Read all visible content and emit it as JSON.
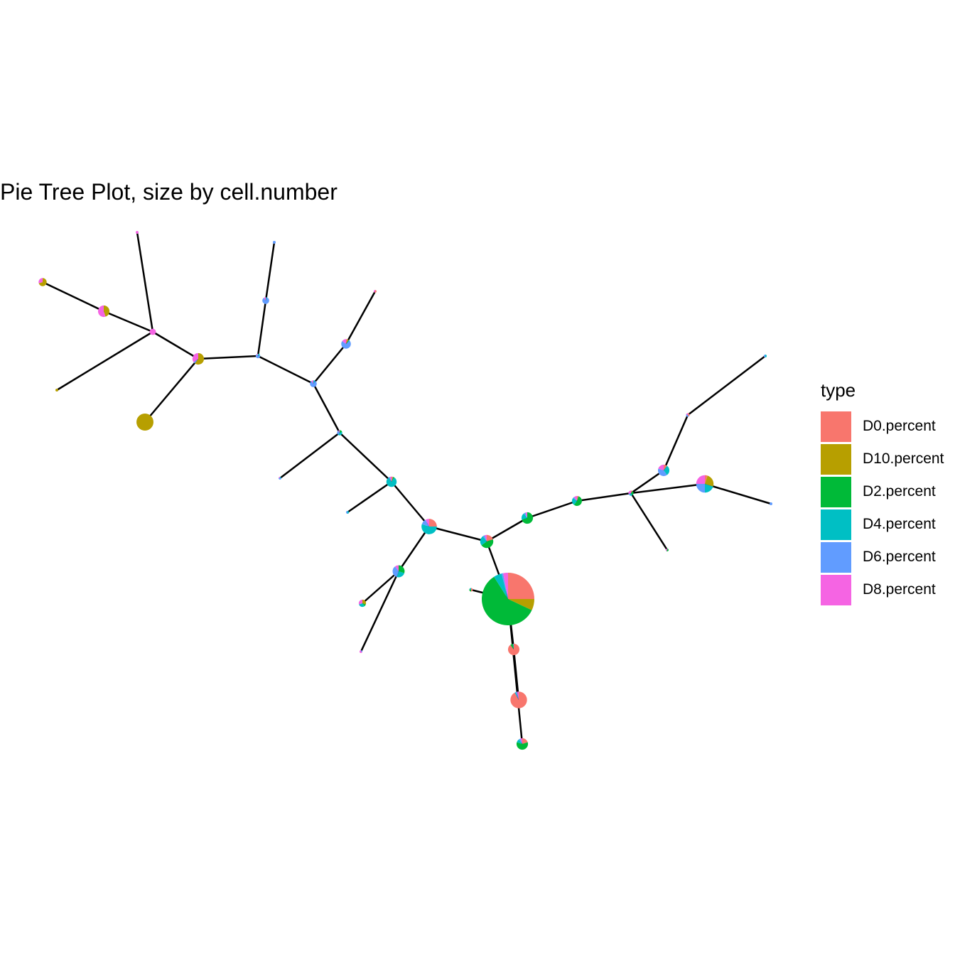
{
  "chart_data": {
    "type": "pie-tree",
    "title": "Pie Tree Plot, size by cell.number",
    "legend": {
      "title": "type",
      "position": "right",
      "entries": [
        {
          "name": "D0.percent",
          "color": "#F8766D"
        },
        {
          "name": "D10.percent",
          "color": "#B79F00"
        },
        {
          "name": "D2.percent",
          "color": "#00BA38"
        },
        {
          "name": "D4.percent",
          "color": "#00BFC4"
        },
        {
          "name": "D6.percent",
          "color": "#619CFF"
        },
        {
          "name": "D8.percent",
          "color": "#F564E3"
        }
      ]
    },
    "nodes": [
      {
        "id": "n1",
        "size": 4200,
        "percent": {
          "D0": 25,
          "D10": 7,
          "D2": 59,
          "D4": 5,
          "D6": 1,
          "D8": 3
        }
      },
      {
        "id": "n2",
        "size": 260,
        "percent": {
          "D0": 20,
          "D10": 0,
          "D2": 45,
          "D4": 25,
          "D6": 5,
          "D8": 5
        }
      },
      {
        "id": "n3",
        "size": 200,
        "percent": {
          "D0": 90,
          "D10": 0,
          "D2": 8,
          "D4": 0,
          "D6": 2,
          "D8": 0
        }
      },
      {
        "id": "n4",
        "size": 420,
        "percent": {
          "D0": 92,
          "D10": 0,
          "D2": 0,
          "D4": 2,
          "D6": 3,
          "D8": 3
        }
      },
      {
        "id": "n5",
        "size": 20,
        "percent": {
          "D0": 50,
          "D10": 0,
          "D2": 30,
          "D4": 20,
          "D6": 0,
          "D8": 0
        }
      },
      {
        "id": "n6",
        "size": 200,
        "percent": {
          "D0": 20,
          "D10": 0,
          "D2": 60,
          "D4": 10,
          "D6": 5,
          "D8": 5
        }
      },
      {
        "id": "n7",
        "size": 360,
        "percent": {
          "D0": 25,
          "D10": 0,
          "D2": 0,
          "D4": 55,
          "D6": 12,
          "D8": 8
        }
      },
      {
        "id": "n8",
        "size": 220,
        "percent": {
          "D0": 0,
          "D10": 0,
          "D2": 30,
          "D4": 25,
          "D6": 35,
          "D8": 10
        }
      },
      {
        "id": "n9",
        "size": 80,
        "percent": {
          "D0": 0,
          "D10": 30,
          "D2": 10,
          "D4": 30,
          "D6": 0,
          "D8": 30
        }
      },
      {
        "id": "n10",
        "size": 10,
        "percent": {
          "D0": 0,
          "D10": 0,
          "D2": 0,
          "D4": 0,
          "D6": 30,
          "D8": 70
        }
      },
      {
        "id": "n11",
        "size": 10,
        "percent": {
          "D0": 0,
          "D10": 0,
          "D2": 0,
          "D4": 50,
          "D6": 50,
          "D8": 0
        }
      },
      {
        "id": "n12",
        "size": 160,
        "percent": {
          "D0": 5,
          "D10": 0,
          "D2": 5,
          "D4": 80,
          "D6": 5,
          "D8": 5
        }
      },
      {
        "id": "n13",
        "size": 40,
        "percent": {
          "D0": 0,
          "D10": 0,
          "D2": 20,
          "D4": 40,
          "D6": 30,
          "D8": 10
        }
      },
      {
        "id": "n14",
        "size": 70,
        "percent": {
          "D0": 0,
          "D10": 0,
          "D2": 0,
          "D4": 10,
          "D6": 80,
          "D8": 10
        }
      },
      {
        "id": "n15",
        "size": 140,
        "percent": {
          "D0": 5,
          "D10": 5,
          "D2": 0,
          "D4": 5,
          "D6": 70,
          "D8": 15
        }
      },
      {
        "id": "n16",
        "size": 8,
        "percent": {
          "D0": 60,
          "D10": 0,
          "D2": 0,
          "D4": 0,
          "D6": 0,
          "D8": 40
        }
      },
      {
        "id": "n17",
        "size": 30,
        "percent": {
          "D0": 0,
          "D10": 0,
          "D2": 0,
          "D4": 20,
          "D6": 70,
          "D8": 10
        }
      },
      {
        "id": "n18",
        "size": 70,
        "percent": {
          "D0": 0,
          "D10": 0,
          "D2": 0,
          "D4": 5,
          "D6": 85,
          "D8": 10
        }
      },
      {
        "id": "n19",
        "size": 8,
        "percent": {
          "D0": 0,
          "D10": 0,
          "D2": 0,
          "D4": 0,
          "D6": 100,
          "D8": 0
        }
      },
      {
        "id": "n20",
        "size": 200,
        "percent": {
          "D0": 0,
          "D10": 60,
          "D2": 0,
          "D4": 0,
          "D6": 5,
          "D8": 35
        }
      },
      {
        "id": "n21",
        "size": 60,
        "percent": {
          "D0": 0,
          "D10": 0,
          "D2": 0,
          "D4": 0,
          "D6": 0,
          "D8": 100
        }
      },
      {
        "id": "n22",
        "size": 200,
        "percent": {
          "D0": 0,
          "D10": 45,
          "D2": 0,
          "D4": 0,
          "D6": 0,
          "D8": 55
        }
      },
      {
        "id": "n23",
        "size": 100,
        "percent": {
          "D0": 0,
          "D10": 70,
          "D2": 0,
          "D4": 0,
          "D6": 0,
          "D8": 30
        }
      },
      {
        "id": "n24",
        "size": 5,
        "percent": {
          "D0": 0,
          "D10": 0,
          "D2": 0,
          "D4": 0,
          "D6": 0,
          "D8": 100
        }
      },
      {
        "id": "n25",
        "size": 4,
        "percent": {
          "D0": 0,
          "D10": 100,
          "D2": 0,
          "D4": 0,
          "D6": 0,
          "D8": 0
        }
      },
      {
        "id": "n26",
        "size": 440,
        "percent": {
          "D0": 0,
          "D10": 100,
          "D2": 0,
          "D4": 0,
          "D6": 0,
          "D8": 0
        }
      },
      {
        "id": "n27",
        "size": 8,
        "percent": {
          "D0": 0,
          "D10": 0,
          "D2": 0,
          "D4": 20,
          "D6": 60,
          "D8": 20
        }
      },
      {
        "id": "n28",
        "size": 70,
        "percent": {
          "D0": 0,
          "D10": 20,
          "D2": 5,
          "D4": 20,
          "D6": 20,
          "D8": 35
        }
      },
      {
        "id": "n29",
        "size": 10,
        "percent": {
          "D0": 0,
          "D10": 0,
          "D2": 0,
          "D4": 0,
          "D6": 20,
          "D8": 80
        }
      },
      {
        "id": "n30",
        "size": 10,
        "percent": {
          "D0": 0,
          "D10": 0,
          "D2": 50,
          "D4": 0,
          "D6": 0,
          "D8": 50
        }
      },
      {
        "id": "n31",
        "size": 140,
        "percent": {
          "D0": 15,
          "D10": 0,
          "D2": 5,
          "D4": 40,
          "D6": 0,
          "D8": 40
        }
      },
      {
        "id": "n32",
        "size": 200,
        "percent": {
          "D0": 0,
          "D10": 0,
          "D2": 70,
          "D4": 20,
          "D6": 5,
          "D8": 5
        }
      },
      {
        "id": "n33",
        "size": 150,
        "percent": {
          "D0": 5,
          "D10": 0,
          "D2": 55,
          "D4": 25,
          "D6": 5,
          "D8": 10
        }
      },
      {
        "id": "n34",
        "size": 40,
        "percent": {
          "D0": 10,
          "D10": 0,
          "D2": 30,
          "D4": 20,
          "D6": 10,
          "D8": 30
        }
      },
      {
        "id": "n35",
        "size": 200,
        "percent": {
          "D0": 10,
          "D10": 0,
          "D2": 0,
          "D4": 30,
          "D6": 40,
          "D8": 20
        }
      },
      {
        "id": "n36",
        "size": 460,
        "percent": {
          "D0": 5,
          "D10": 25,
          "D2": 0,
          "D4": 20,
          "D6": 25,
          "D8": 25
        }
      },
      {
        "id": "n37",
        "size": 8,
        "percent": {
          "D0": 0,
          "D10": 0,
          "D2": 0,
          "D4": 50,
          "D6": 50,
          "D8": 0
        }
      },
      {
        "id": "n38",
        "size": 8,
        "percent": {
          "D0": 0,
          "D10": 0,
          "D2": 0,
          "D4": 0,
          "D6": 100,
          "D8": 0
        }
      },
      {
        "id": "n39",
        "size": 20,
        "percent": {
          "D0": 40,
          "D10": 0,
          "D2": 0,
          "D4": 0,
          "D6": 40,
          "D8": 20
        }
      },
      {
        "id": "n40",
        "size": 10,
        "percent": {
          "D0": 0,
          "D10": 0,
          "D2": 60,
          "D4": 0,
          "D6": 0,
          "D8": 40
        }
      }
    ],
    "edges": [
      [
        "n1",
        "n2"
      ],
      [
        "n1",
        "n5"
      ],
      [
        "n1",
        "n6"
      ],
      [
        "n1",
        "n3"
      ],
      [
        "n3",
        "n4"
      ],
      [
        "n2",
        "n7"
      ],
      [
        "n2",
        "n32"
      ],
      [
        "n7",
        "n8"
      ],
      [
        "n8",
        "n9"
      ],
      [
        "n8",
        "n10"
      ],
      [
        "n7",
        "n12"
      ],
      [
        "n12",
        "n11"
      ],
      [
        "n12",
        "n13"
      ],
      [
        "n13",
        "n27"
      ],
      [
        "n13",
        "n14"
      ],
      [
        "n14",
        "n15"
      ],
      [
        "n15",
        "n16"
      ],
      [
        "n14",
        "n17"
      ],
      [
        "n17",
        "n18"
      ],
      [
        "n18",
        "n19"
      ],
      [
        "n17",
        "n20"
      ],
      [
        "n20",
        "n26"
      ],
      [
        "n20",
        "n21"
      ],
      [
        "n21",
        "n24"
      ],
      [
        "n21",
        "n22"
      ],
      [
        "n22",
        "n23"
      ],
      [
        "n21",
        "n25"
      ],
      [
        "n32",
        "n33"
      ],
      [
        "n33",
        "n34"
      ],
      [
        "n34",
        "n35"
      ],
      [
        "n34",
        "n40"
      ],
      [
        "n35",
        "n39"
      ],
      [
        "n39",
        "n37"
      ],
      [
        "n34",
        "n36"
      ],
      [
        "n36",
        "n38"
      ]
    ]
  }
}
